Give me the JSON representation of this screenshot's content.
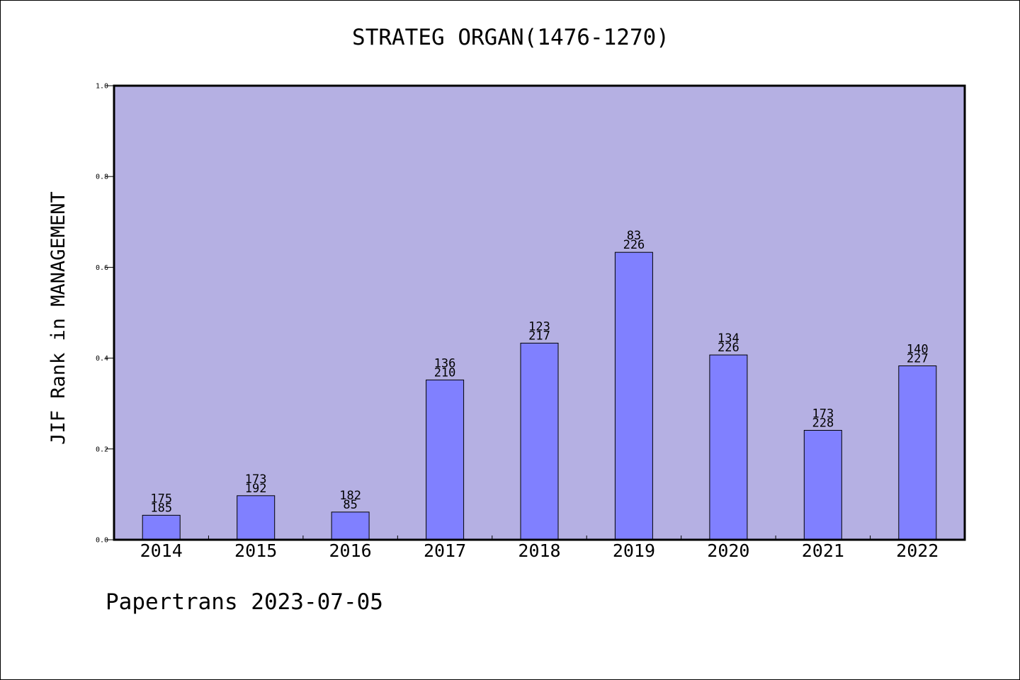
{
  "title": "STRATEG ORGAN(1476-1270)",
  "footer": "Papertrans 2023-07-05",
  "colors": {
    "plot_bg": "#b5b0e3",
    "bar_fill": "#8080ff",
    "bar_stroke": "#000000"
  },
  "chart_data": {
    "type": "bar",
    "title": "STRATEG ORGAN(1476-1270)",
    "xlabel": "",
    "ylabel": "JIF Rank in MANAGEMENT",
    "ylim": [
      0,
      1.0
    ],
    "yticks": [
      "0.0",
      "0.2",
      "0.4",
      "0.6",
      "0.8",
      "1.0"
    ],
    "grid": false,
    "categories": [
      "2014",
      "2015",
      "2016",
      "2017",
      "2018",
      "2019",
      "2020",
      "2021",
      "2022"
    ],
    "values": [
      0.054,
      0.097,
      0.061,
      0.352,
      0.433,
      0.633,
      0.407,
      0.241,
      0.383
    ],
    "labels_top": [
      "175",
      "173",
      "182",
      "136",
      "123",
      "83",
      "134",
      "173",
      "140"
    ],
    "labels_bottom": [
      "185",
      "192",
      "85",
      "210",
      "217",
      "226",
      "226",
      "228",
      "227"
    ]
  }
}
